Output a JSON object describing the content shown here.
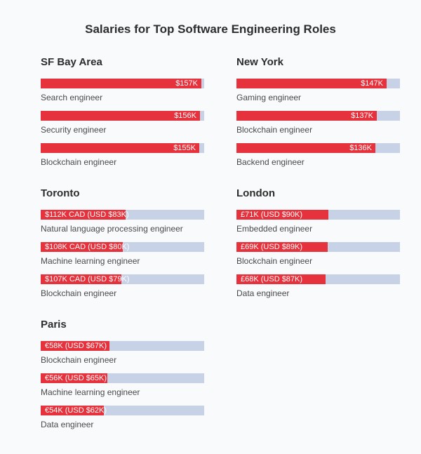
{
  "chart_data": {
    "type": "bar",
    "title": "Salaries for Top Software Engineering Roles",
    "unit": "USD thousands",
    "scale_max": 160,
    "colors": {
      "bar": "#e5323c",
      "track": "#c8d2e6"
    },
    "groups": [
      {
        "city": "SF Bay Area",
        "items": [
          {
            "role": "Search engineer",
            "label": "$157K",
            "usd": 157
          },
          {
            "role": "Security engineer",
            "label": "$156K",
            "usd": 156
          },
          {
            "role": "Blockchain engineer",
            "label": "$155K",
            "usd": 155
          }
        ]
      },
      {
        "city": "New York",
        "items": [
          {
            "role": "Gaming engineer",
            "label": "$147K",
            "usd": 147
          },
          {
            "role": "Blockchain engineer",
            "label": "$137K",
            "usd": 137
          },
          {
            "role": "Backend engineer",
            "label": "$136K",
            "usd": 136
          }
        ]
      },
      {
        "city": "Toronto",
        "items": [
          {
            "role": "Natural language processing engineer",
            "label": "$112K CAD (USD $83K)",
            "usd": 83
          },
          {
            "role": "Machine learning engineer",
            "label": "$108K CAD (USD $80K)",
            "usd": 80
          },
          {
            "role": "Blockchain engineer",
            "label": "$107K CAD (USD $79K)",
            "usd": 79
          }
        ]
      },
      {
        "city": "London",
        "items": [
          {
            "role": "Embedded engineer",
            "label": "£71K (USD $90K)",
            "usd": 90
          },
          {
            "role": "Blockchain engineer",
            "label": "£69K (USD $89K)",
            "usd": 89
          },
          {
            "role": "Data engineer",
            "label": "£68K (USD $87K)",
            "usd": 87
          }
        ]
      },
      {
        "city": "Paris",
        "items": [
          {
            "role": "Blockchain engineer",
            "label": "€58K (USD $67K)",
            "usd": 67
          },
          {
            "role": "Machine learning engineer",
            "label": "€56K (USD $65K)",
            "usd": 65
          },
          {
            "role": "Data engineer",
            "label": "€54K (USD $62K)",
            "usd": 62
          }
        ]
      }
    ]
  }
}
